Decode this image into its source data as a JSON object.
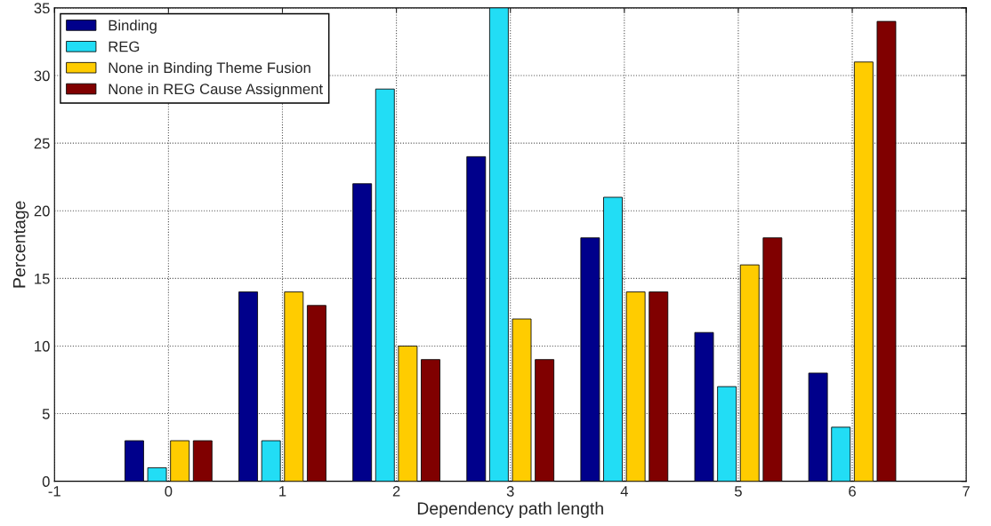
{
  "chart_data": {
    "type": "bar",
    "xlabel": "Dependency path length",
    "ylabel": "Percentage",
    "x": [
      0,
      1,
      2,
      3,
      4,
      5,
      6
    ],
    "series": [
      {
        "name": "Binding",
        "color": "#00008b",
        "values": [
          3,
          14,
          22,
          24,
          18,
          11,
          8
        ]
      },
      {
        "name": "REG",
        "color": "#22ddf5",
        "values": [
          1,
          3,
          29,
          35,
          21,
          7,
          4
        ]
      },
      {
        "name": "None in Binding Theme Fusion",
        "color": "#ffcc00",
        "values": [
          3,
          14,
          10,
          12,
          14,
          16,
          31
        ]
      },
      {
        "name": "None in REG Cause Assignment",
        "color": "#800000",
        "values": [
          3,
          13,
          9,
          9,
          14,
          18,
          34
        ]
      }
    ],
    "xlim": [
      -1,
      7
    ],
    "xticks": [
      -1,
      0,
      1,
      2,
      3,
      4,
      5,
      6,
      7
    ],
    "ylim": [
      0,
      35
    ],
    "yticks": [
      0,
      5,
      10,
      15,
      20,
      25,
      30,
      35
    ],
    "grid": true,
    "legend": "top left"
  }
}
